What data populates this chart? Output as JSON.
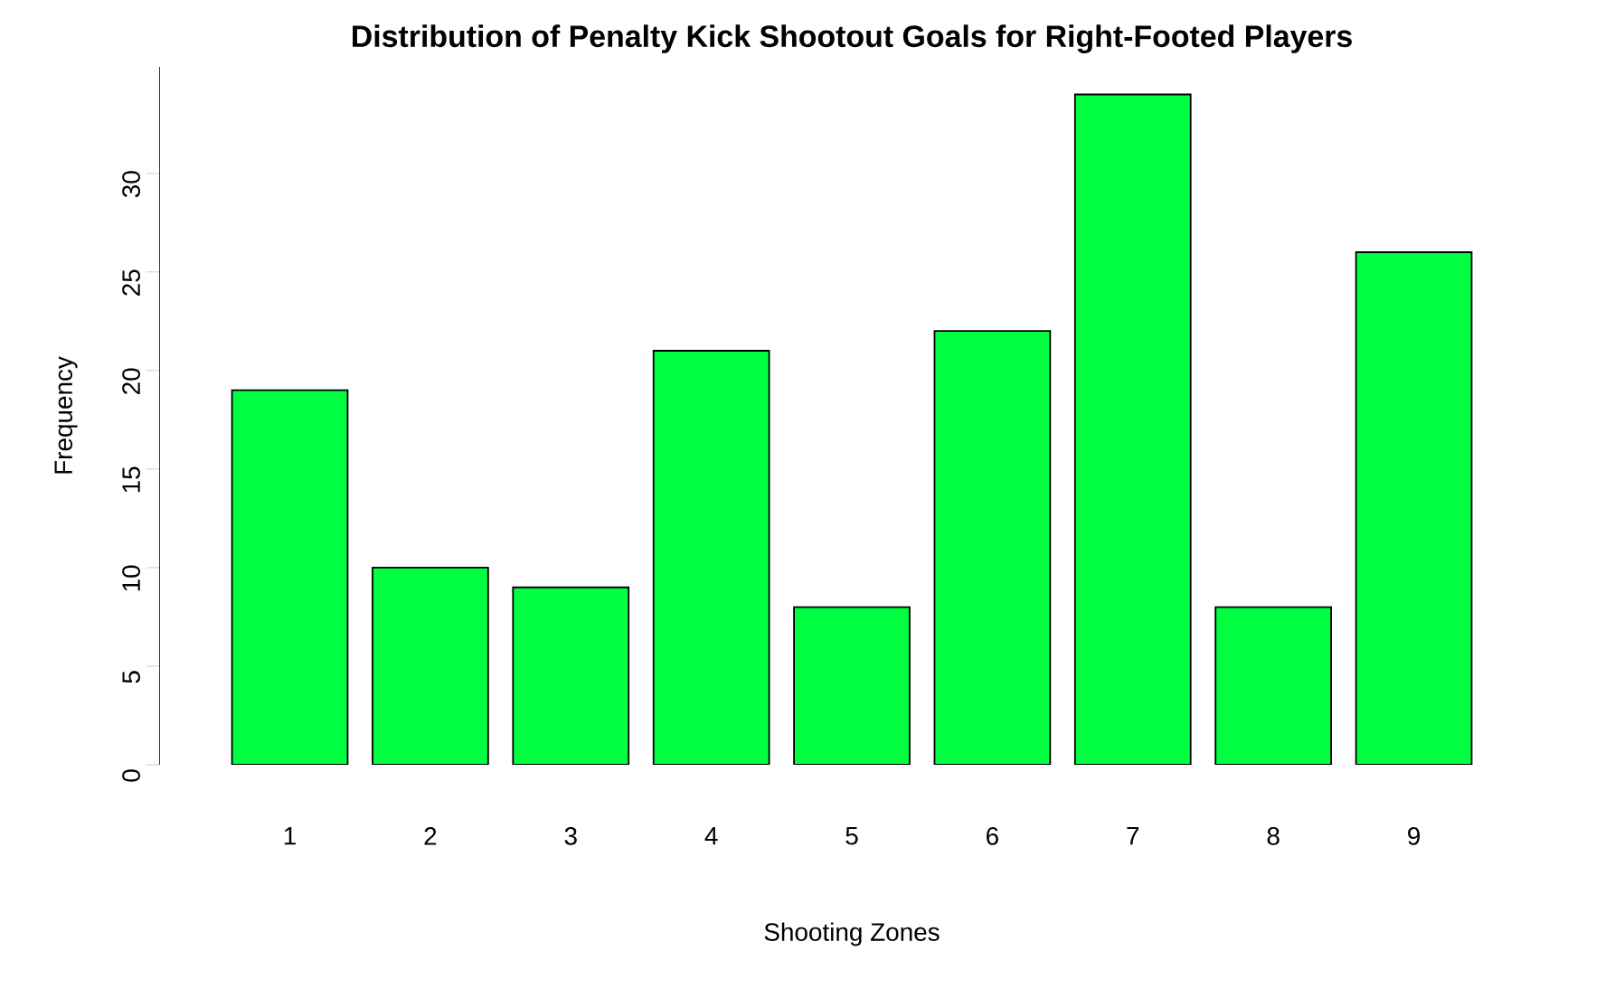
{
  "chart_data": {
    "type": "bar",
    "title": "Distribution of Penalty Kick Shootout Goals for Right-Footed Players",
    "xlabel": "Shooting Zones",
    "ylabel": "Frequency",
    "categories": [
      "1",
      "2",
      "3",
      "4",
      "5",
      "6",
      "7",
      "8",
      "9"
    ],
    "values": [
      19,
      10,
      9,
      21,
      8,
      22,
      34,
      8,
      26
    ],
    "color": "#00ff40",
    "ylim": [
      0,
      35.4
    ],
    "yticks": [
      0,
      5,
      10,
      15,
      20,
      25,
      30
    ],
    "grid": false
  }
}
